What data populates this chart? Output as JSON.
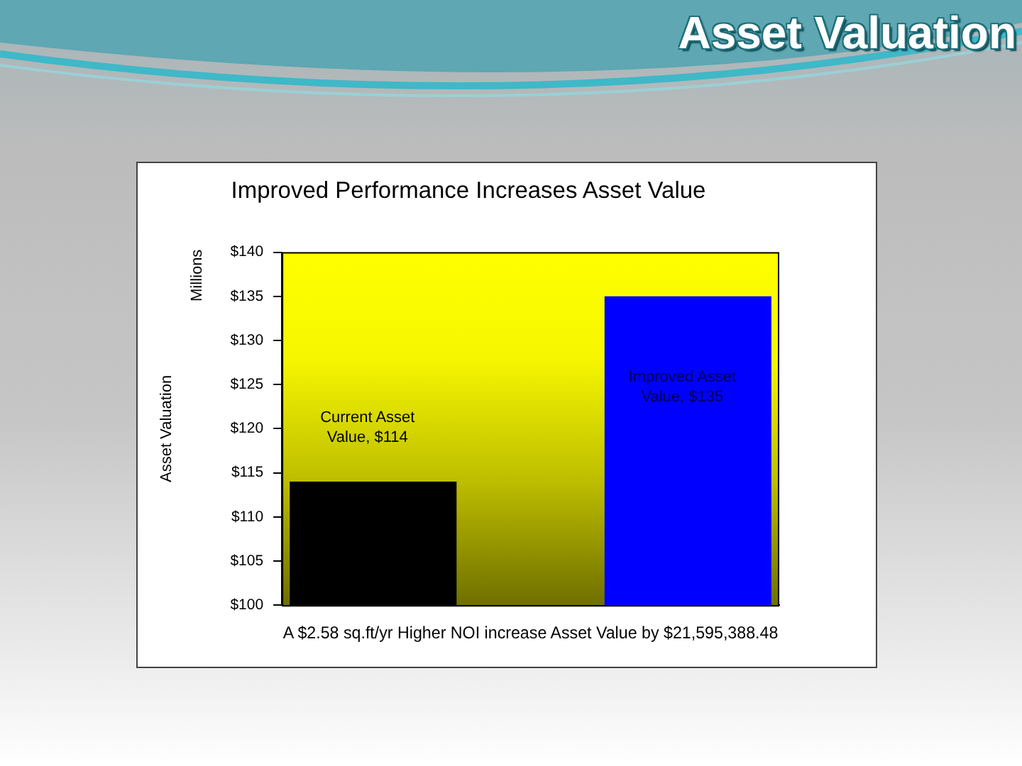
{
  "chart_data": {
    "type": "bar",
    "title": "Asset Valuation",
    "subtitle": "Improved Performance Increases Asset Value",
    "ylabel": "Asset Valuation",
    "xlabel": "A $2.58 sq.ft/yr Higher NOI increase Asset Value by $21,595,388.48",
    "annotations": [
      "Millions"
    ],
    "categories": [
      null,
      null
    ],
    "values": [
      114,
      135
    ],
    "colors": [
      "#000000",
      "#0000ff"
    ],
    "value_labels": [
      "Current Asset Value, $114",
      "Improved Asset Value, $135"
    ],
    "ylim": [
      100,
      140
    ],
    "yticks": [
      {
        "value": 100,
        "label": "$100"
      },
      {
        "value": 105,
        "label": "$105"
      },
      {
        "value": 110,
        "label": "$110"
      },
      {
        "value": 115,
        "label": "$115"
      },
      {
        "value": 120,
        "label": "$120"
      },
      {
        "value": 125,
        "label": "$125"
      },
      {
        "value": 130,
        "label": "$130"
      },
      {
        "value": 135,
        "label": "$135"
      },
      {
        "value": 140,
        "label": "$140"
      }
    ]
  }
}
